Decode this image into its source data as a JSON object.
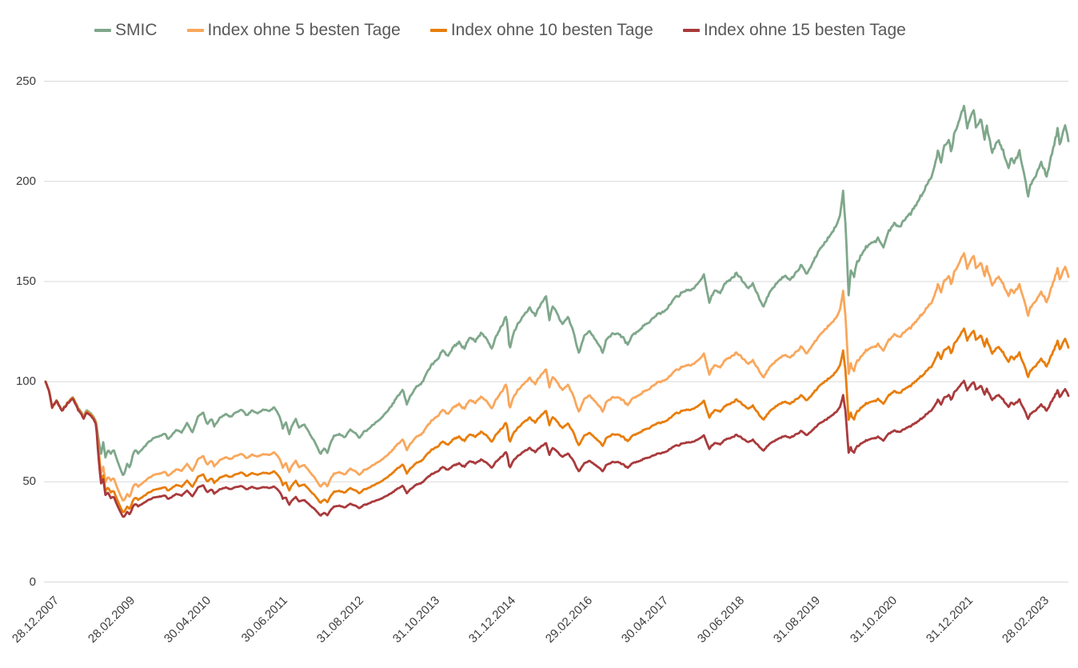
{
  "chart_data": {
    "type": "line",
    "title": "",
    "legend_position": "top",
    "grid": "horizontal",
    "background_color": "#ffffff",
    "grid_color": "#d9d9d9",
    "tick_text_color": "#3d3d3d",
    "legend_text_color": "#595959",
    "x_axis": {
      "label": "",
      "tick_labels": [
        "28.12.2007",
        "28.02.2009",
        "30.04.2010",
        "30.06.2011",
        "31.08.2012",
        "31.10.2013",
        "31.12.2014",
        "29.02.2016",
        "30.04.2017",
        "30.06.2018",
        "31.08.2019",
        "31.10.2020",
        "31.12.2021",
        "28.02.2023"
      ],
      "tick_interval_months": 14,
      "total_months": 188
    },
    "y_axis": {
      "label": "",
      "ticks": [
        0,
        50,
        100,
        150,
        200,
        250
      ],
      "min": 0,
      "max": 250
    },
    "series": [
      {
        "name": "SMIC",
        "color": "#7fa78b",
        "start_value": 100,
        "end_value": 220,
        "keyframes": [
          [
            0,
            100
          ],
          [
            0.7,
            95
          ],
          [
            1.2,
            87
          ],
          [
            2,
            91
          ],
          [
            2.5,
            88
          ],
          [
            3,
            86
          ],
          [
            4,
            90
          ],
          [
            5,
            93
          ],
          [
            5.5,
            90
          ],
          [
            6,
            87
          ],
          [
            7,
            83
          ],
          [
            7.5,
            86
          ],
          [
            8.3,
            85
          ],
          [
            8.8,
            83
          ],
          [
            9.3,
            80
          ],
          [
            9.8,
            70
          ],
          [
            10.2,
            64
          ],
          [
            10.6,
            70
          ],
          [
            11,
            62
          ],
          [
            11.5,
            66
          ],
          [
            12,
            64
          ],
          [
            12.5,
            66
          ],
          [
            13,
            62
          ],
          [
            13.8,
            56
          ],
          [
            14.3,
            53
          ],
          [
            15,
            59
          ],
          [
            15.5,
            57
          ],
          [
            16,
            63
          ],
          [
            16.5,
            66
          ],
          [
            17,
            64
          ],
          [
            18,
            67
          ],
          [
            19,
            70
          ],
          [
            20,
            72
          ],
          [
            21,
            73
          ],
          [
            22,
            74
          ],
          [
            22.5,
            71
          ],
          [
            23,
            73
          ],
          [
            24,
            76
          ],
          [
            25,
            75
          ],
          [
            26,
            79
          ],
          [
            27,
            75
          ],
          [
            28,
            82
          ],
          [
            29,
            84
          ],
          [
            29.7,
            78
          ],
          [
            30.5,
            81
          ],
          [
            31,
            78
          ],
          [
            32,
            82
          ],
          [
            33,
            84
          ],
          [
            34,
            83
          ],
          [
            35,
            85
          ],
          [
            36,
            86
          ],
          [
            37,
            83
          ],
          [
            38,
            85
          ],
          [
            39,
            84
          ],
          [
            40,
            86
          ],
          [
            41,
            85
          ],
          [
            42,
            87
          ],
          [
            43,
            83
          ],
          [
            43.6,
            77
          ],
          [
            44.2,
            80
          ],
          [
            44.8,
            74
          ],
          [
            45.4,
            79
          ],
          [
            46,
            82
          ],
          [
            46.6,
            77
          ],
          [
            47.5,
            79
          ],
          [
            48.5,
            74
          ],
          [
            49.5,
            70
          ],
          [
            50.5,
            64
          ],
          [
            51.2,
            67
          ],
          [
            51.8,
            65
          ],
          [
            52.4,
            70
          ],
          [
            53,
            73
          ],
          [
            54,
            74
          ],
          [
            55,
            72
          ],
          [
            56,
            76
          ],
          [
            57,
            74
          ],
          [
            57.7,
            71
          ],
          [
            58.5,
            75
          ],
          [
            59.2,
            76
          ],
          [
            60,
            78
          ],
          [
            61,
            80
          ],
          [
            62,
            83
          ],
          [
            63,
            86
          ],
          [
            64,
            90
          ],
          [
            65,
            94
          ],
          [
            65.7,
            97
          ],
          [
            66.4,
            89
          ],
          [
            67,
            93
          ],
          [
            68,
            97
          ],
          [
            69,
            99
          ],
          [
            70,
            104
          ],
          [
            71,
            109
          ],
          [
            72,
            112
          ],
          [
            73,
            116
          ],
          [
            74,
            113
          ],
          [
            75,
            118
          ],
          [
            76,
            120
          ],
          [
            77,
            117
          ],
          [
            78,
            123
          ],
          [
            79,
            120
          ],
          [
            80,
            124
          ],
          [
            81,
            122
          ],
          [
            82,
            117
          ],
          [
            83,
            124
          ],
          [
            84,
            129
          ],
          [
            84.7,
            133
          ],
          [
            85.3,
            116
          ],
          [
            86,
            124
          ],
          [
            87,
            130
          ],
          [
            88,
            133
          ],
          [
            89,
            137
          ],
          [
            90,
            133
          ],
          [
            91,
            139
          ],
          [
            92,
            143
          ],
          [
            92.6,
            132
          ],
          [
            93.2,
            139
          ],
          [
            94,
            135
          ],
          [
            95,
            129
          ],
          [
            96,
            132
          ],
          [
            97,
            125
          ],
          [
            98,
            115
          ],
          [
            98.5,
            119
          ],
          [
            99,
            123
          ],
          [
            100,
            126
          ],
          [
            101,
            121
          ],
          [
            102,
            117
          ],
          [
            102.4,
            114
          ],
          [
            103,
            121
          ],
          [
            104,
            124
          ],
          [
            105,
            125
          ],
          [
            106,
            123
          ],
          [
            107,
            119
          ],
          [
            107.5,
            122
          ],
          [
            108,
            124
          ],
          [
            109,
            126
          ],
          [
            110,
            128
          ],
          [
            111,
            130
          ],
          [
            112,
            132
          ],
          [
            113,
            134
          ],
          [
            114,
            136
          ],
          [
            115,
            139
          ],
          [
            116,
            142
          ],
          [
            117,
            144
          ],
          [
            118,
            146
          ],
          [
            119,
            147
          ],
          [
            120,
            149
          ],
          [
            121,
            154
          ],
          [
            122,
            140
          ],
          [
            123,
            146
          ],
          [
            124,
            144
          ],
          [
            125,
            149
          ],
          [
            126,
            151
          ],
          [
            127,
            153
          ],
          [
            128,
            150
          ],
          [
            129,
            147
          ],
          [
            130,
            149
          ],
          [
            131,
            143
          ],
          [
            132,
            137
          ],
          [
            133,
            144
          ],
          [
            134,
            148
          ],
          [
            135,
            151
          ],
          [
            136,
            153
          ],
          [
            137,
            151
          ],
          [
            138,
            155
          ],
          [
            139,
            158
          ],
          [
            140,
            154
          ],
          [
            141,
            160
          ],
          [
            142,
            164
          ],
          [
            143,
            168
          ],
          [
            144,
            172
          ],
          [
            145,
            176
          ],
          [
            146,
            182
          ],
          [
            146.6,
            195
          ],
          [
            147.1,
            176
          ],
          [
            147.6,
            143
          ],
          [
            148,
            155
          ],
          [
            148.6,
            152
          ],
          [
            149,
            158
          ],
          [
            150,
            163
          ],
          [
            151,
            167
          ],
          [
            152,
            169
          ],
          [
            153,
            171
          ],
          [
            154,
            167
          ],
          [
            155,
            175
          ],
          [
            156,
            179
          ],
          [
            157,
            177
          ],
          [
            158,
            181
          ],
          [
            159,
            184
          ],
          [
            160,
            188
          ],
          [
            161,
            192
          ],
          [
            162,
            197
          ],
          [
            163,
            204
          ],
          [
            164,
            214
          ],
          [
            164.6,
            210
          ],
          [
            165,
            216
          ],
          [
            166,
            222
          ],
          [
            166.5,
            215
          ],
          [
            167,
            224
          ],
          [
            168,
            231
          ],
          [
            168.8,
            239
          ],
          [
            169.4,
            227
          ],
          [
            170,
            233
          ],
          [
            170.6,
            236
          ],
          [
            171,
            226
          ],
          [
            172,
            230
          ],
          [
            172.6,
            220
          ],
          [
            173,
            226
          ],
          [
            174,
            214
          ],
          [
            175,
            221
          ],
          [
            176,
            216
          ],
          [
            177,
            206
          ],
          [
            177.5,
            212
          ],
          [
            178,
            208
          ],
          [
            179,
            216
          ],
          [
            180,
            203
          ],
          [
            180.6,
            193
          ],
          [
            181,
            199
          ],
          [
            182,
            204
          ],
          [
            183,
            210
          ],
          [
            184,
            203
          ],
          [
            185,
            214
          ],
          [
            185.5,
            220
          ],
          [
            186,
            226
          ],
          [
            186.4,
            218
          ],
          [
            187,
            224
          ],
          [
            187.5,
            227
          ],
          [
            188,
            220
          ]
        ]
      },
      {
        "name": "Index ohne 5 besten Tage",
        "color": "#f9a75c",
        "base": "SMIC",
        "start_value": 100,
        "end_value": 152,
        "ratio_keyframes": [
          [
            0,
            1
          ],
          [
            9.3,
            0.995
          ],
          [
            9.8,
            0.93
          ],
          [
            10.2,
            0.85
          ],
          [
            11,
            0.8
          ],
          [
            12,
            0.79
          ],
          [
            14.2,
            0.76
          ],
          [
            15,
            0.743
          ],
          [
            147,
            0.743
          ],
          [
            147.6,
            0.725
          ],
          [
            148.2,
            0.691
          ],
          [
            188,
            0.691
          ]
        ]
      },
      {
        "name": "Index ohne 10 besten Tage",
        "color": "#e87d0b",
        "base": "SMIC",
        "start_value": 100,
        "end_value": 117,
        "ratio_keyframes": [
          [
            0,
            1
          ],
          [
            9.3,
            0.99
          ],
          [
            9.8,
            0.9
          ],
          [
            10.2,
            0.8
          ],
          [
            11,
            0.73
          ],
          [
            12,
            0.7
          ],
          [
            14.2,
            0.655
          ],
          [
            15,
            0.64
          ],
          [
            43.5,
            0.633
          ],
          [
            44.5,
            0.62
          ],
          [
            66,
            0.612
          ],
          [
            84.6,
            0.6
          ],
          [
            102.3,
            0.595
          ],
          [
            121.5,
            0.59
          ],
          [
            147,
            0.59
          ],
          [
            147.6,
            0.565
          ],
          [
            148.2,
            0.532
          ],
          [
            188,
            0.532
          ]
        ]
      },
      {
        "name": "Index ohne 15 besten Tage",
        "color": "#a93a3c",
        "base": "SMIC",
        "start_value": 100,
        "end_value": 93,
        "ratio_keyframes": [
          [
            0,
            1
          ],
          [
            9.3,
            0.985
          ],
          [
            9.8,
            0.86
          ],
          [
            10.2,
            0.77
          ],
          [
            11,
            0.7
          ],
          [
            12,
            0.655
          ],
          [
            14.2,
            0.612
          ],
          [
            15,
            0.594
          ],
          [
            29,
            0.57
          ],
          [
            43.5,
            0.545
          ],
          [
            44.5,
            0.523
          ],
          [
            60,
            0.512
          ],
          [
            66,
            0.5
          ],
          [
            84.6,
            0.49
          ],
          [
            102.3,
            0.482
          ],
          [
            121.5,
            0.477
          ],
          [
            147,
            0.477
          ],
          [
            147.6,
            0.45
          ],
          [
            148.2,
            0.4227
          ],
          [
            188,
            0.4227
          ]
        ]
      }
    ]
  }
}
